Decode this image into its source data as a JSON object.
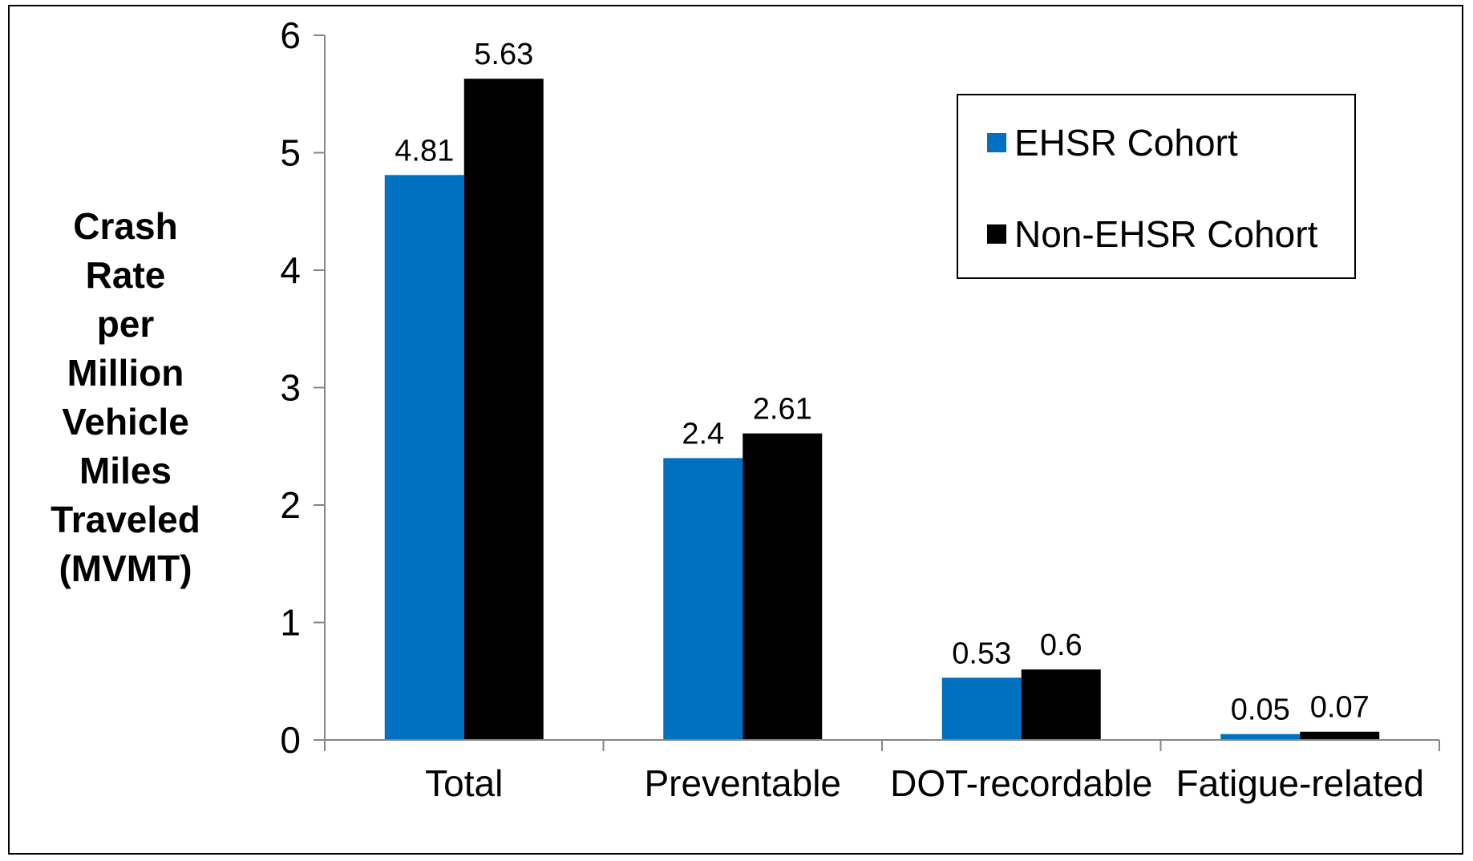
{
  "chart_data": {
    "type": "bar",
    "categories": [
      "Total",
      "Preventable",
      "DOT-recordable",
      "Fatigue-related"
    ],
    "series": [
      {
        "name": "EHSR Cohort",
        "color": "#0070C0",
        "values": [
          4.81,
          2.4,
          0.53,
          0.05
        ],
        "labels": [
          "4.81",
          "2.4",
          "0.53",
          "0.05"
        ]
      },
      {
        "name": "Non-EHSR Cohort",
        "color": "#000000",
        "values": [
          5.63,
          2.61,
          0.6,
          0.07
        ],
        "labels": [
          "5.63",
          "2.61",
          "0.6",
          "0.07"
        ]
      }
    ],
    "ylabel": [
      "Crash",
      "Rate",
      "per",
      "Million",
      "Vehicle",
      "Miles",
      "Traveled",
      "(MVMT)"
    ],
    "ylim": [
      0,
      6
    ],
    "yticks": [
      "0",
      "1",
      "2",
      "3",
      "4",
      "5",
      "6"
    ],
    "grid": false,
    "legend_position": "top-right"
  }
}
